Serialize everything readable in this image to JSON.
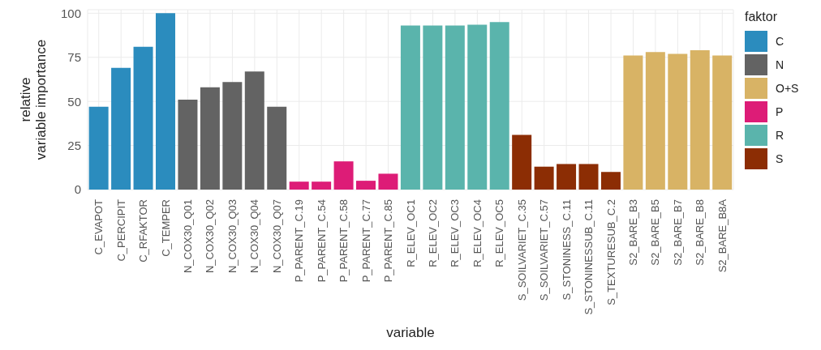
{
  "chart_data": {
    "type": "bar",
    "xlabel": "variable",
    "ylabel": "relative\nvariable importance",
    "legend_title": "faktor",
    "categories": [
      "C_EVAPOT",
      "C_PERCIPIT",
      "C_RFAKTOR",
      "C_TEMPER",
      "N_COX30_Q01",
      "N_COX30_Q02",
      "N_COX30_Q03",
      "N_COX30_Q04",
      "N_COX30_Q07",
      "P_PARENT_C.19",
      "P_PARENT_C.54",
      "P_PARENT_C.58",
      "P_PARENT_C.77",
      "P_PARENT_C.85",
      "R_ELEV_OC1",
      "R_ELEV_OC2",
      "R_ELEV_OC3",
      "R_ELEV_OC4",
      "R_ELEV_OC5",
      "S_SOILVARIET_C.35",
      "S_SOILVARIET_C.57",
      "S_STONINESS_C.11",
      "S_STONINESSUB_C.11",
      "S_TEXTURESUB_C.2",
      "S2_BARE_B3",
      "S2_BARE_B5",
      "S2_BARE_B7",
      "S2_BARE_B8",
      "S2_BARE_B8A"
    ],
    "series": [
      {
        "name": "C",
        "color": "#2b8cbe",
        "values": [
          47,
          69,
          81,
          100,
          null,
          null,
          null,
          null,
          null,
          null,
          null,
          null,
          null,
          null,
          null,
          null,
          null,
          null,
          null,
          null,
          null,
          null,
          null,
          null,
          null,
          null,
          null,
          null,
          null
        ]
      },
      {
        "name": "N",
        "color": "#636363",
        "values": [
          null,
          null,
          null,
          null,
          51,
          58,
          61,
          67,
          47,
          null,
          null,
          null,
          null,
          null,
          null,
          null,
          null,
          null,
          null,
          null,
          null,
          null,
          null,
          null,
          null,
          null,
          null,
          null,
          null
        ]
      },
      {
        "name": "O+S",
        "color": "#d8b365",
        "values": [
          null,
          null,
          null,
          null,
          null,
          null,
          null,
          null,
          null,
          null,
          null,
          null,
          null,
          null,
          null,
          null,
          null,
          null,
          null,
          null,
          null,
          null,
          null,
          null,
          76,
          78,
          77,
          79,
          76
        ]
      },
      {
        "name": "P",
        "color": "#dd1c77",
        "values": [
          null,
          null,
          null,
          null,
          null,
          null,
          null,
          null,
          null,
          4.5,
          4.5,
          16,
          5,
          9,
          null,
          null,
          null,
          null,
          null,
          null,
          null,
          null,
          null,
          null,
          null,
          null,
          null,
          null,
          null
        ]
      },
      {
        "name": "R",
        "color": "#5ab4ac",
        "values": [
          null,
          null,
          null,
          null,
          null,
          null,
          null,
          null,
          null,
          null,
          null,
          null,
          null,
          null,
          93,
          93,
          93,
          93.5,
          95,
          null,
          null,
          null,
          null,
          null,
          null,
          null,
          null,
          null,
          null
        ]
      },
      {
        "name": "S",
        "color": "#8c2d04",
        "values": [
          null,
          null,
          null,
          null,
          null,
          null,
          null,
          null,
          null,
          null,
          null,
          null,
          null,
          null,
          null,
          null,
          null,
          null,
          null,
          31,
          13,
          14.5,
          14.5,
          10,
          null,
          null,
          null,
          null,
          null
        ]
      }
    ],
    "stacked": true,
    "ylim": [
      0,
      102
    ],
    "yticks": [
      0,
      25,
      50,
      75,
      100
    ],
    "grid": true,
    "legend": "right"
  }
}
